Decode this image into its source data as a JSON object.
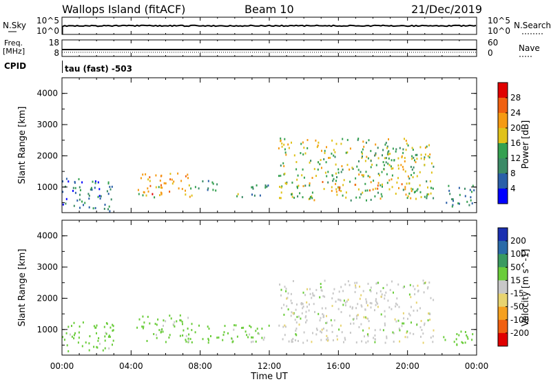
{
  "header": {
    "station": "Wallops Island (fitACF)",
    "beam": "Beam 10",
    "date": "21/Dec/2019"
  },
  "status_panels": {
    "nsky_label": "N.Sky",
    "nsearch_label": "N.Search",
    "noise_ticks_left": [
      "10^5",
      "10^0"
    ],
    "noise_ticks_right": [
      "10^5",
      "10^0"
    ],
    "freq_label_line1": "Freq.",
    "freq_label_line2": "[MHz]",
    "freq_ticks": [
      "18",
      "8"
    ],
    "nave_label": "Nave",
    "nave_ticks": [
      "60",
      "0"
    ],
    "cpid_label": "CPID",
    "cpid_text": "tau (fast) -503"
  },
  "colors": {
    "power_scale": [
      "#0000ff",
      "#2a5fa8",
      "#3b8a66",
      "#34a050",
      "#e0c21a",
      "#f59a12",
      "#f06010",
      "#e00000"
    ],
    "velocity_scale": [
      "#e00000",
      "#f06010",
      "#f5a020",
      "#e8d470",
      "#c8c8c8",
      "#6acc3a",
      "#3a9a60",
      "#2a6aa8",
      "#1a2fb0"
    ]
  },
  "chart_data": [
    {
      "type": "heatmap",
      "panel": "power",
      "ylabel": "Slant Range [km]",
      "yticks": [
        "4000",
        "3000",
        "2000",
        "1000"
      ],
      "ylim": [
        180,
        4500
      ],
      "xlim": [
        0,
        24
      ],
      "colorbar_label": "Power [dB]",
      "colorbar_ticks": [
        "28",
        "24",
        "20",
        "16",
        "12",
        "8",
        "4"
      ],
      "colorbar_range": [
        0,
        32
      ],
      "regions": [
        {
          "x": [
            0.0,
            3.0
          ],
          "y": [
            200,
            1300
          ],
          "value": 8
        },
        {
          "x": [
            4.3,
            7.5
          ],
          "y": [
            700,
            1500
          ],
          "value": 20
        },
        {
          "x": [
            4.8,
            5.8
          ],
          "y": [
            800,
            1100
          ],
          "value": 26
        },
        {
          "x": [
            7.5,
            9.0
          ],
          "y": [
            900,
            1300
          ],
          "value": 10
        },
        {
          "x": [
            10.0,
            12.0
          ],
          "y": [
            700,
            1100
          ],
          "value": 12
        },
        {
          "x": [
            12.5,
            21.5
          ],
          "y": [
            600,
            2600
          ],
          "value": 16
        },
        {
          "x": [
            15.0,
            20.0
          ],
          "y": [
            900,
            1200
          ],
          "value": 22
        },
        {
          "x": [
            22.0,
            24.0
          ],
          "y": [
            400,
            1100
          ],
          "value": 10
        }
      ]
    },
    {
      "type": "heatmap",
      "panel": "velocity",
      "ylabel": "Slant Range [km]",
      "yticks": [
        "4000",
        "3000",
        "2000",
        "1000"
      ],
      "ylim": [
        180,
        4500
      ],
      "xlim": [
        0,
        24
      ],
      "xlabel": "Time UT",
      "xticks": [
        "00:00",
        "04:00",
        "08:00",
        "12:00",
        "16:00",
        "20:00",
        "00:00"
      ],
      "colorbar_label": "Velocity [m s^-1]",
      "colorbar_ticks": [
        "200",
        "100",
        "50",
        "15",
        "-15",
        "-50",
        "-100",
        "-200"
      ],
      "regions": [
        {
          "x": [
            0.0,
            3.0
          ],
          "y": [
            300,
            1300
          ],
          "value": 30
        },
        {
          "x": [
            4.3,
            7.8
          ],
          "y": [
            600,
            1500
          ],
          "value": 30
        },
        {
          "x": [
            7.8,
            12.0
          ],
          "y": [
            600,
            1200
          ],
          "value": 30
        },
        {
          "x": [
            12.5,
            21.5
          ],
          "y": [
            600,
            2600
          ],
          "value": 0
        },
        {
          "x": [
            22.0,
            24.0
          ],
          "y": [
            500,
            1000
          ],
          "value": 30
        }
      ]
    }
  ]
}
